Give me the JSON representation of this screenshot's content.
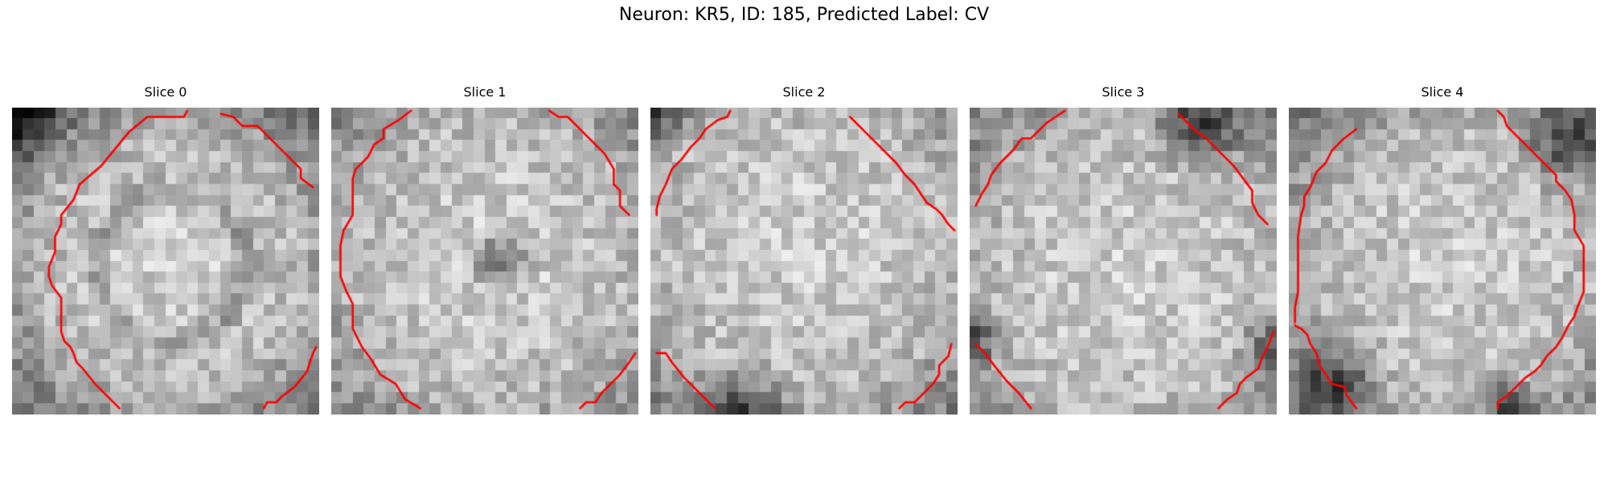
{
  "figure": {
    "title": "Neuron: KR5, ID: 185, Predicted Label: CV",
    "outline_color": "#ff0000",
    "colormap": "grayscale",
    "panels": [
      {
        "title": "Slice 0",
        "brightness": "bright disc with darker inner ring, dark top-left corner",
        "contours": [
          [
            [
              0.57,
              0.01
            ],
            [
              0.56,
              0.03
            ],
            [
              0.44,
              0.03
            ],
            [
              0.38,
              0.08
            ],
            [
              0.29,
              0.19
            ],
            [
              0.22,
              0.25
            ],
            [
              0.2,
              0.3
            ],
            [
              0.16,
              0.35
            ],
            [
              0.16,
              0.38
            ],
            [
              0.14,
              0.42
            ],
            [
              0.14,
              0.47
            ],
            [
              0.12,
              0.52
            ],
            [
              0.12,
              0.55
            ],
            [
              0.13,
              0.58
            ],
            [
              0.16,
              0.62
            ],
            [
              0.16,
              0.73
            ],
            [
              0.17,
              0.76
            ],
            [
              0.19,
              0.78
            ],
            [
              0.2,
              0.8
            ],
            [
              0.21,
              0.83
            ],
            [
              0.23,
              0.85
            ],
            [
              0.27,
              0.9
            ],
            [
              0.35,
              0.98
            ]
          ],
          [
            [
              0.68,
              0.02
            ],
            [
              0.72,
              0.03
            ],
            [
              0.75,
              0.06
            ],
            [
              0.8,
              0.06
            ],
            [
              0.83,
              0.09
            ],
            [
              0.86,
              0.12
            ],
            [
              0.89,
              0.15
            ],
            [
              0.94,
              0.2
            ],
            [
              0.94,
              0.23
            ],
            [
              0.98,
              0.26
            ]
          ],
          [
            [
              0.82,
              0.98
            ],
            [
              0.83,
              0.96
            ],
            [
              0.86,
              0.96
            ],
            [
              0.88,
              0.94
            ],
            [
              0.92,
              0.91
            ],
            [
              0.96,
              0.86
            ],
            [
              0.98,
              0.8
            ],
            [
              0.99,
              0.78
            ]
          ]
        ]
      },
      {
        "title": "Slice 1",
        "brightness": "bright disc with dark spot near center",
        "contours": [
          [
            [
              0.26,
              0.01
            ],
            [
              0.22,
              0.04
            ],
            [
              0.17,
              0.07
            ],
            [
              0.17,
              0.1
            ],
            [
              0.14,
              0.12
            ],
            [
              0.12,
              0.16
            ],
            [
              0.08,
              0.2
            ],
            [
              0.07,
              0.23
            ],
            [
              0.07,
              0.35
            ],
            [
              0.04,
              0.4
            ],
            [
              0.03,
              0.45
            ],
            [
              0.03,
              0.55
            ],
            [
              0.05,
              0.6
            ],
            [
              0.07,
              0.64
            ],
            [
              0.07,
              0.72
            ],
            [
              0.1,
              0.78
            ],
            [
              0.13,
              0.82
            ],
            [
              0.16,
              0.87
            ],
            [
              0.21,
              0.9
            ],
            [
              0.24,
              0.95
            ],
            [
              0.29,
              0.98
            ]
          ],
          [
            [
              0.71,
              0.01
            ],
            [
              0.74,
              0.03
            ],
            [
              0.77,
              0.03
            ],
            [
              0.8,
              0.06
            ],
            [
              0.82,
              0.08
            ],
            [
              0.86,
              0.12
            ],
            [
              0.89,
              0.15
            ],
            [
              0.92,
              0.2
            ],
            [
              0.92,
              0.25
            ],
            [
              0.94,
              0.27
            ],
            [
              0.94,
              0.32
            ],
            [
              0.97,
              0.35
            ]
          ],
          [
            [
              0.81,
              0.98
            ],
            [
              0.83,
              0.96
            ],
            [
              0.86,
              0.96
            ],
            [
              0.88,
              0.93
            ],
            [
              0.91,
              0.9
            ],
            [
              0.94,
              0.87
            ],
            [
              0.97,
              0.83
            ],
            [
              0.99,
              0.8
            ]
          ]
        ]
      },
      {
        "title": "Slice 2",
        "brightness": "bright disc, darker border",
        "contours": [
          [
            [
              0.26,
              0.01
            ],
            [
              0.25,
              0.03
            ],
            [
              0.22,
              0.04
            ],
            [
              0.18,
              0.07
            ],
            [
              0.16,
              0.1
            ],
            [
              0.13,
              0.13
            ],
            [
              0.1,
              0.17
            ],
            [
              0.07,
              0.2
            ],
            [
              0.05,
              0.25
            ],
            [
              0.03,
              0.29
            ],
            [
              0.02,
              0.33
            ],
            [
              0.02,
              0.35
            ]
          ],
          [
            [
              0.65,
              0.03
            ],
            [
              0.7,
              0.08
            ],
            [
              0.75,
              0.13
            ],
            [
              0.8,
              0.18
            ],
            [
              0.83,
              0.22
            ],
            [
              0.86,
              0.25
            ],
            [
              0.88,
              0.28
            ],
            [
              0.9,
              0.31
            ],
            [
              0.93,
              0.33
            ],
            [
              0.95,
              0.35
            ],
            [
              0.97,
              0.38
            ],
            [
              0.99,
              0.4
            ]
          ],
          [
            [
              0.02,
              0.8
            ],
            [
              0.05,
              0.8
            ],
            [
              0.07,
              0.83
            ],
            [
              0.11,
              0.88
            ],
            [
              0.16,
              0.93
            ],
            [
              0.21,
              0.98
            ]
          ],
          [
            [
              0.81,
              0.98
            ],
            [
              0.83,
              0.96
            ],
            [
              0.86,
              0.96
            ],
            [
              0.88,
              0.94
            ],
            [
              0.92,
              0.9
            ],
            [
              0.94,
              0.87
            ],
            [
              0.94,
              0.84
            ],
            [
              0.97,
              0.81
            ],
            [
              0.98,
              0.77
            ]
          ]
        ]
      },
      {
        "title": "Slice 3",
        "brightness": "bright disc, darker border",
        "contours": [
          [
            [
              0.31,
              0.01
            ],
            [
              0.28,
              0.03
            ],
            [
              0.25,
              0.05
            ],
            [
              0.22,
              0.08
            ],
            [
              0.2,
              0.1
            ],
            [
              0.17,
              0.1
            ],
            [
              0.14,
              0.14
            ],
            [
              0.1,
              0.18
            ],
            [
              0.07,
              0.22
            ],
            [
              0.06,
              0.25
            ],
            [
              0.04,
              0.28
            ],
            [
              0.02,
              0.32
            ]
          ],
          [
            [
              0.68,
              0.02
            ],
            [
              0.7,
              0.04
            ],
            [
              0.73,
              0.07
            ],
            [
              0.77,
              0.1
            ],
            [
              0.82,
              0.15
            ],
            [
              0.86,
              0.19
            ],
            [
              0.89,
              0.23
            ],
            [
              0.92,
              0.27
            ],
            [
              0.92,
              0.31
            ],
            [
              0.93,
              0.33
            ],
            [
              0.94,
              0.35
            ],
            [
              0.97,
              0.38
            ]
          ],
          [
            [
              0.02,
              0.77
            ],
            [
              0.05,
              0.8
            ],
            [
              0.08,
              0.84
            ],
            [
              0.12,
              0.89
            ],
            [
              0.16,
              0.93
            ],
            [
              0.2,
              0.98
            ]
          ],
          [
            [
              0.81,
              0.98
            ],
            [
              0.84,
              0.95
            ],
            [
              0.87,
              0.93
            ],
            [
              0.88,
              0.9
            ],
            [
              0.9,
              0.88
            ],
            [
              0.94,
              0.85
            ],
            [
              0.95,
              0.82
            ],
            [
              0.97,
              0.78
            ],
            [
              0.99,
              0.73
            ]
          ]
        ]
      },
      {
        "title": "Slice 4",
        "brightness": "bright disc, dark band top-right and bottom-left",
        "contours": [
          [
            [
              0.68,
              0.01
            ],
            [
              0.7,
              0.03
            ],
            [
              0.71,
              0.06
            ],
            [
              0.74,
              0.09
            ],
            [
              0.78,
              0.13
            ],
            [
              0.82,
              0.17
            ],
            [
              0.87,
              0.22
            ],
            [
              0.87,
              0.24
            ],
            [
              0.9,
              0.27
            ],
            [
              0.92,
              0.3
            ],
            [
              0.93,
              0.35
            ],
            [
              0.93,
              0.4
            ],
            [
              0.96,
              0.45
            ],
            [
              0.96,
              0.6
            ],
            [
              0.94,
              0.65
            ],
            [
              0.93,
              0.68
            ],
            [
              0.91,
              0.71
            ],
            [
              0.89,
              0.75
            ],
            [
              0.87,
              0.78
            ],
            [
              0.84,
              0.81
            ],
            [
              0.82,
              0.84
            ],
            [
              0.8,
              0.86
            ],
            [
              0.77,
              0.88
            ],
            [
              0.74,
              0.91
            ],
            [
              0.71,
              0.94
            ],
            [
              0.68,
              0.96
            ],
            [
              0.68,
              0.98
            ]
          ],
          [
            [
              0.22,
              0.07
            ],
            [
              0.18,
              0.1
            ],
            [
              0.14,
              0.14
            ],
            [
              0.12,
              0.18
            ],
            [
              0.09,
              0.21
            ],
            [
              0.07,
              0.26
            ],
            [
              0.05,
              0.29
            ],
            [
              0.05,
              0.32
            ],
            [
              0.04,
              0.35
            ],
            [
              0.03,
              0.42
            ],
            [
              0.03,
              0.6
            ],
            [
              0.02,
              0.65
            ],
            [
              0.02,
              0.7
            ]
          ],
          [
            [
              0.02,
              0.71
            ],
            [
              0.04,
              0.72
            ],
            [
              0.06,
              0.74
            ],
            [
              0.07,
              0.77
            ],
            [
              0.09,
              0.8
            ],
            [
              0.1,
              0.84
            ],
            [
              0.12,
              0.87
            ],
            [
              0.14,
              0.9
            ],
            [
              0.18,
              0.91
            ],
            [
              0.19,
              0.94
            ],
            [
              0.22,
              0.98
            ]
          ]
        ]
      }
    ]
  }
}
